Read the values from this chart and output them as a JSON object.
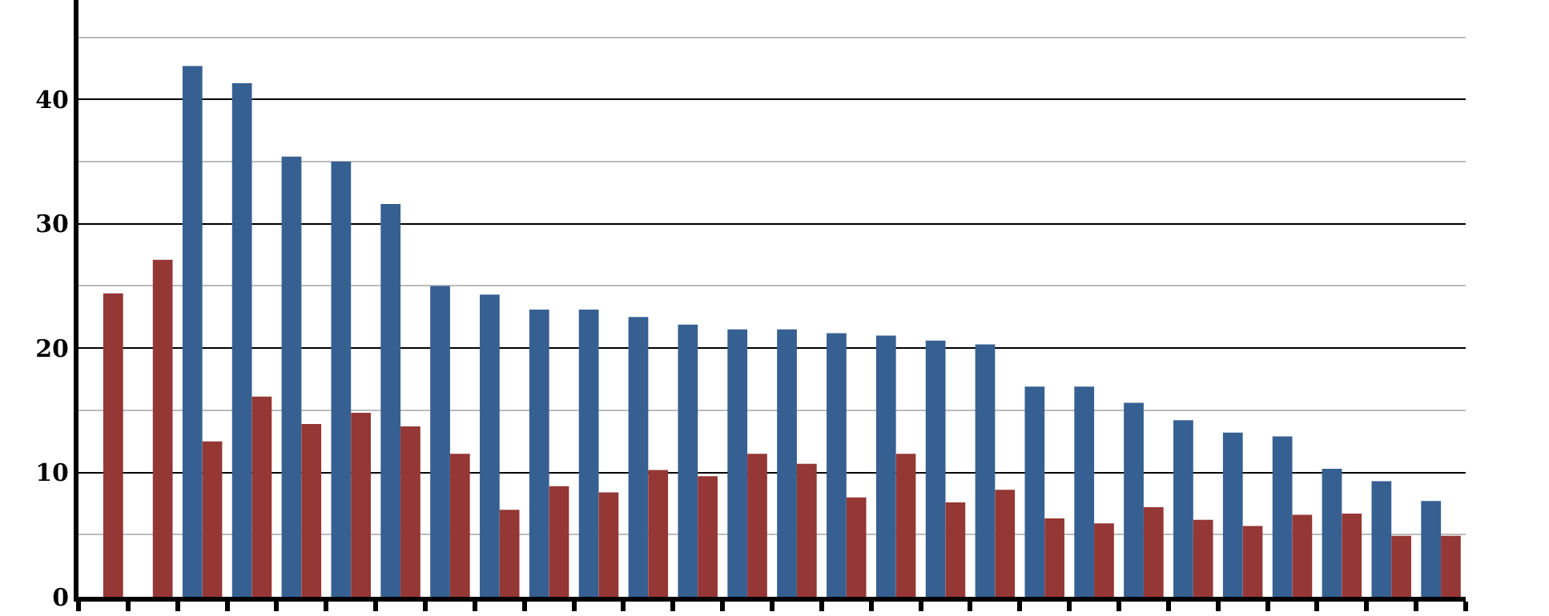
{
  "chart_data": {
    "type": "bar",
    "categories": [
      null,
      null,
      null,
      null,
      null,
      null,
      null,
      null,
      null,
      null,
      null,
      null,
      null,
      null,
      null,
      null,
      null,
      null,
      null,
      null,
      null,
      null,
      null,
      null,
      null,
      null,
      null,
      null
    ],
    "series": [
      {
        "color": "#366092",
        "values": [
          null,
          null,
          42.7,
          41.3,
          35.4,
          35.0,
          31.6,
          25.0,
          24.3,
          23.1,
          23.1,
          22.5,
          21.9,
          21.5,
          21.5,
          21.2,
          21.0,
          20.6,
          20.3,
          16.9,
          16.9,
          15.6,
          14.2,
          13.2,
          12.9,
          10.3,
          9.3,
          7.7
        ]
      },
      {
        "color": "#953735",
        "values": [
          24.4,
          27.1,
          12.5,
          16.1,
          13.9,
          14.8,
          13.7,
          11.5,
          7.0,
          8.9,
          8.4,
          10.2,
          9.7,
          11.5,
          10.7,
          8.0,
          11.5,
          7.6,
          8.6,
          6.3,
          5.9,
          7.2,
          6.2,
          5.7,
          6.6,
          6.7,
          4.9,
          4.9
        ]
      }
    ],
    "ylim": [
      0,
      48
    ],
    "yticks": [
      0,
      {
        "value": 5,
        "label": null
      },
      10,
      {
        "value": 15,
        "label": null
      },
      20,
      {
        "value": 25,
        "label": null
      },
      30,
      {
        "value": 35,
        "label": null
      },
      40,
      {
        "value": 45,
        "label": null
      }
    ],
    "grid": "y",
    "legend": false
  }
}
